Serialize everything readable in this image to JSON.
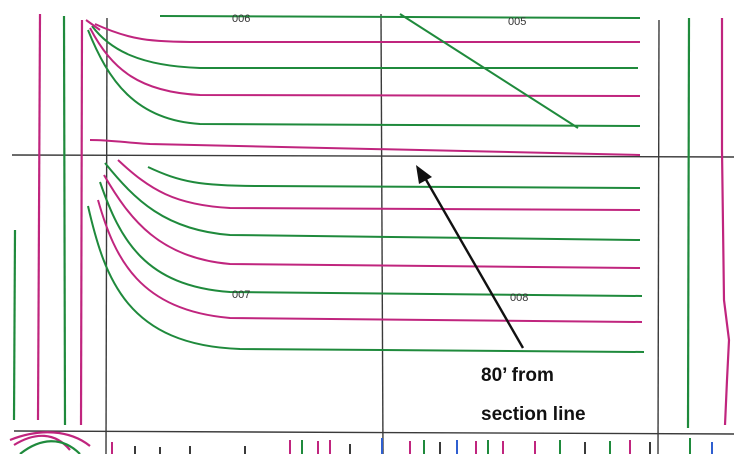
{
  "labels": {
    "parcel_006": "006",
    "parcel_005": "005",
    "parcel_007": "007",
    "parcel_008": "008"
  },
  "callout": {
    "line1": "80’ from",
    "line2": "section line"
  },
  "colors": {
    "green": "#1f8a3c",
    "magenta": "#c0257e",
    "grid": "#3a3a3a",
    "arrow": "#111111",
    "blue": "#2f5fd0"
  }
}
